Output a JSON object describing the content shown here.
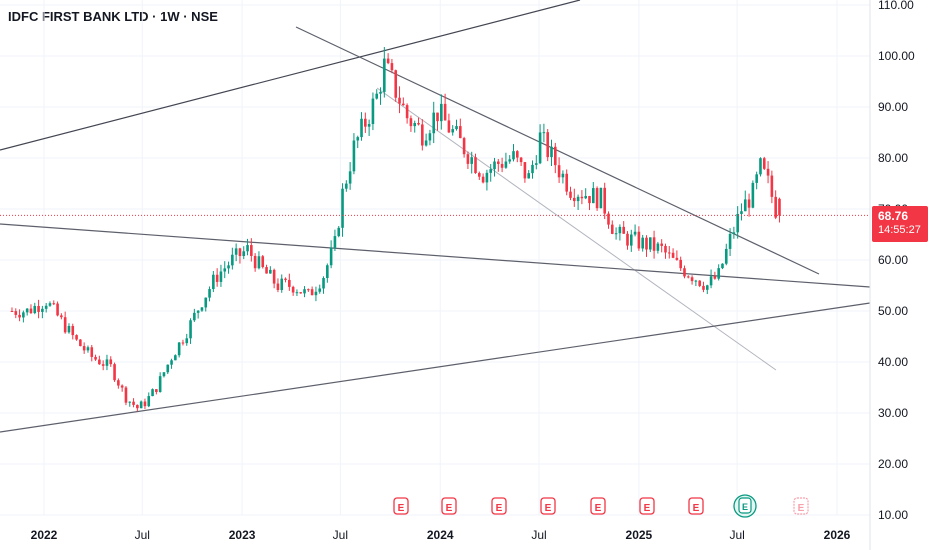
{
  "header": {
    "title": "IDFC FIRST BANK LTD · 1W · NSE"
  },
  "price_tag": {
    "price": "68.76",
    "countdown": "14:55:27"
  },
  "colors": {
    "up": "#089981",
    "down": "#f23645",
    "trendline": "#434651",
    "last_price_line": "#f23645",
    "grid": "#f0f3fa"
  },
  "chart_data": {
    "type": "candlestick",
    "y_ticks": [
      "110.00",
      "100.00",
      "90.00",
      "80.00",
      "70.00",
      "60.00",
      "50.00",
      "40.00",
      "30.00",
      "20.00",
      "10.00"
    ],
    "x_ticks": [
      {
        "label": "2022",
        "year": true
      },
      {
        "label": "Jul",
        "year": false
      },
      {
        "label": "2023",
        "year": true
      },
      {
        "label": "Jul",
        "year": false
      },
      {
        "label": "2024",
        "year": true
      },
      {
        "label": "Jul",
        "year": false
      },
      {
        "label": "2025",
        "year": true
      },
      {
        "label": "Jul",
        "year": false
      },
      {
        "label": "2026",
        "year": true
      }
    ],
    "ylim": [
      10,
      110
    ],
    "last_price": 68.76,
    "earnings_markers": 8,
    "dividend_markers": 1,
    "close_path": [
      [
        "2021-12-01",
        50
      ],
      [
        "2022-01-05",
        52
      ],
      [
        "2022-02-02",
        48
      ],
      [
        "2022-03-02",
        44
      ],
      [
        "2022-03-30",
        41
      ],
      [
        "2022-05-04",
        39
      ],
      [
        "2022-06-01",
        33
      ],
      [
        "2022-06-22",
        31
      ],
      [
        "2022-07-06",
        32
      ],
      [
        "2022-07-27",
        35
      ],
      [
        "2022-08-24",
        41
      ],
      [
        "2022-09-21",
        46
      ],
      [
        "2022-10-19",
        52
      ],
      [
        "2022-11-16",
        57
      ],
      [
        "2022-12-14",
        60
      ],
      [
        "2023-01-11",
        62
      ],
      [
        "2023-02-08",
        58
      ],
      [
        "2023-03-08",
        55
      ],
      [
        "2023-04-05",
        55
      ],
      [
        "2023-05-03",
        53
      ],
      [
        "2023-05-31",
        57
      ],
      [
        "2023-06-21",
        63
      ],
      [
        "2023-07-05",
        73
      ],
      [
        "2023-07-26",
        82
      ],
      [
        "2023-08-16",
        87
      ],
      [
        "2023-09-06",
        92
      ],
      [
        "2023-09-20",
        98
      ],
      [
        "2023-10-04",
        95
      ],
      [
        "2023-11-01",
        88
      ],
      [
        "2023-11-29",
        85
      ],
      [
        "2023-12-27",
        89
      ],
      [
        "2024-01-24",
        85
      ],
      [
        "2024-02-21",
        81
      ],
      [
        "2024-03-20",
        77
      ],
      [
        "2024-04-17",
        79
      ],
      [
        "2024-05-15",
        80
      ],
      [
        "2024-06-12",
        76
      ],
      [
        "2024-07-03",
        84
      ],
      [
        "2024-07-31",
        79
      ],
      [
        "2024-08-28",
        74
      ],
      [
        "2024-09-25",
        73
      ],
      [
        "2024-10-23",
        72
      ],
      [
        "2024-11-20",
        65
      ],
      [
        "2024-12-18",
        64
      ],
      [
        "2025-01-15",
        63
      ],
      [
        "2025-02-12",
        62
      ],
      [
        "2025-03-12",
        59
      ],
      [
        "2025-04-09",
        57
      ],
      [
        "2025-05-07",
        55
      ],
      [
        "2025-05-28",
        57
      ],
      [
        "2025-06-18",
        64
      ],
      [
        "2025-07-09",
        70
      ],
      [
        "2025-07-30",
        73
      ],
      [
        "2025-08-13",
        78
      ],
      [
        "2025-08-27",
        75
      ],
      [
        "2025-09-10",
        70
      ],
      [
        "2025-09-17",
        68.76
      ]
    ]
  }
}
